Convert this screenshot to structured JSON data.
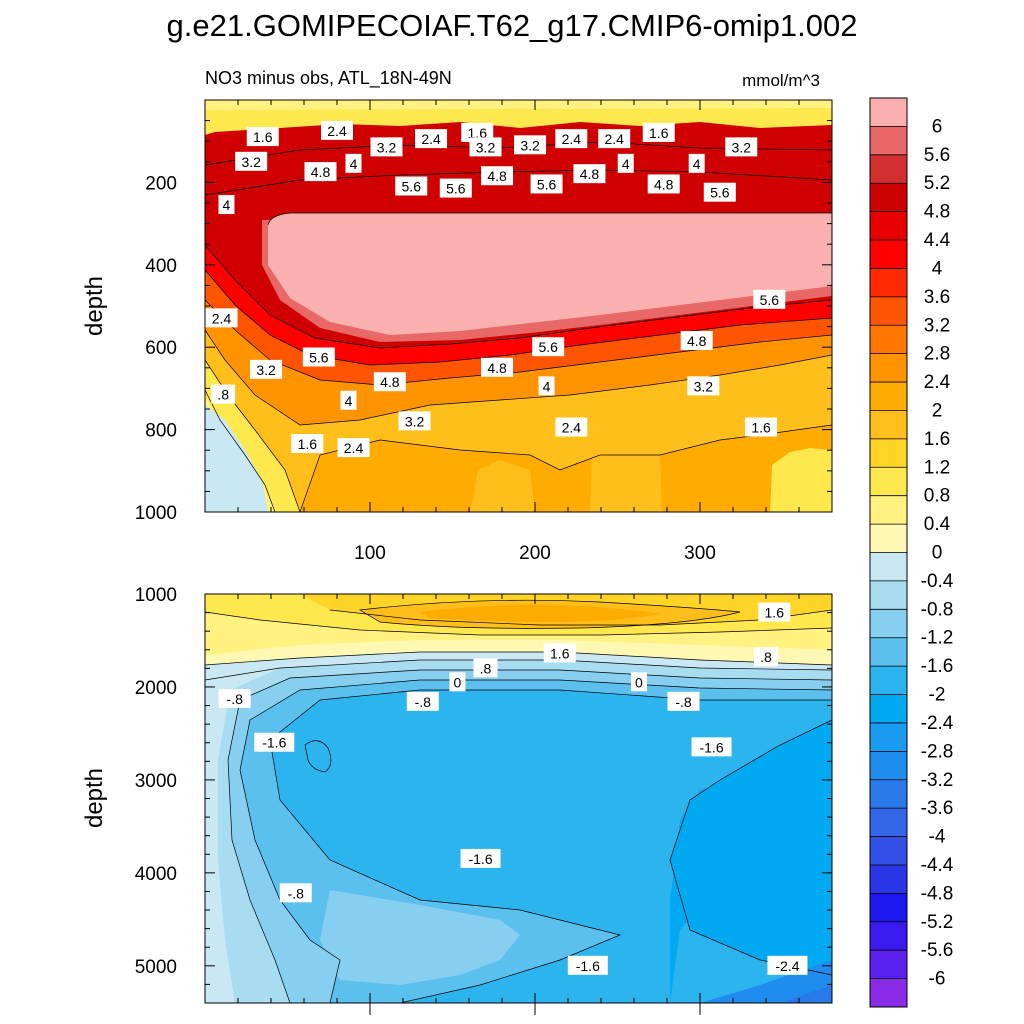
{
  "chart_data": {
    "type": "contour",
    "title": "g.e21.GOMIPECOIAF.T62_g17.CMIP6-omip1.002",
    "subtitle": "NO3 minus obs, ATL_18N-49N",
    "units": "mmol/m^3",
    "x_ticks": [
      100,
      200,
      300
    ],
    "x_range": [
      0,
      380
    ],
    "upper_panel": {
      "ylabel": "depth",
      "ylim": [
        0,
        1000
      ],
      "y_ticks": [
        200,
        400,
        600,
        800,
        1000
      ],
      "contour_labels": [
        {
          "text": "1.6",
          "x": 35,
          "y": 90
        },
        {
          "text": "2.4",
          "x": 80,
          "y": 75
        },
        {
          "text": "3.2",
          "x": 110,
          "y": 115
        },
        {
          "text": "2.4",
          "x": 137,
          "y": 95
        },
        {
          "text": "1.6",
          "x": 165,
          "y": 80
        },
        {
          "text": "3.2",
          "x": 170,
          "y": 115
        },
        {
          "text": "3.2",
          "x": 197,
          "y": 110
        },
        {
          "text": "2.4",
          "x": 222,
          "y": 95
        },
        {
          "text": "2.4",
          "x": 248,
          "y": 95
        },
        {
          "text": "1.6",
          "x": 275,
          "y": 80
        },
        {
          "text": "3.2",
          "x": 325,
          "y": 115
        },
        {
          "text": "3.2",
          "x": 28,
          "y": 150
        },
        {
          "text": "4.8",
          "x": 70,
          "y": 175
        },
        {
          "text": "4",
          "x": 90,
          "y": 155
        },
        {
          "text": "5.6",
          "x": 125,
          "y": 210
        },
        {
          "text": "5.6",
          "x": 152,
          "y": 215
        },
        {
          "text": "4.8",
          "x": 177,
          "y": 185
        },
        {
          "text": "5.6",
          "x": 207,
          "y": 205
        },
        {
          "text": "4.8",
          "x": 233,
          "y": 180
        },
        {
          "text": "4",
          "x": 255,
          "y": 155
        },
        {
          "text": "4",
          "x": 298,
          "y": 155
        },
        {
          "text": "4.8",
          "x": 278,
          "y": 205
        },
        {
          "text": "5.6",
          "x": 312,
          "y": 225
        },
        {
          "text": "4",
          "x": 13,
          "y": 255
        },
        {
          "text": "2.4",
          "x": 10,
          "y": 530
        },
        {
          "text": "5.6",
          "x": 342,
          "y": 485
        },
        {
          "text": "5.6",
          "x": 69,
          "y": 625
        },
        {
          "text": "5.6",
          "x": 208,
          "y": 600
        },
        {
          "text": "4.8",
          "x": 298,
          "y": 585
        },
        {
          "text": "3.2",
          "x": 37,
          "y": 655
        },
        {
          "text": "4.8",
          "x": 177,
          "y": 650
        },
        {
          "text": "4.8",
          "x": 112,
          "y": 685
        },
        {
          "text": "4",
          "x": 207,
          "y": 695
        },
        {
          "text": "3.2",
          "x": 302,
          "y": 695
        },
        {
          "text": ".8",
          "x": 11,
          "y": 715
        },
        {
          "text": "4",
          "x": 87,
          "y": 730
        },
        {
          "text": "3.2",
          "x": 127,
          "y": 780
        },
        {
          "text": "2.4",
          "x": 222,
          "y": 795
        },
        {
          "text": "1.6",
          "x": 337,
          "y": 795
        },
        {
          "text": "1.6",
          "x": 62,
          "y": 835
        },
        {
          "text": "2.4",
          "x": 90,
          "y": 845
        }
      ]
    },
    "lower_panel": {
      "ylabel": "depth",
      "ylim": [
        1000,
        5400
      ],
      "y_ticks": [
        1000,
        2000,
        3000,
        4000,
        5000
      ],
      "contour_labels": [
        {
          "text": "1.6",
          "x": 345,
          "y": 1200
        },
        {
          "text": "1.6",
          "x": 215,
          "y": 1640
        },
        {
          "text": ".8",
          "x": 340,
          "y": 1680
        },
        {
          "text": ".8",
          "x": 170,
          "y": 1800
        },
        {
          "text": "0",
          "x": 153,
          "y": 1950
        },
        {
          "text": "0",
          "x": 263,
          "y": 1950
        },
        {
          "text": "-.8",
          "x": 18,
          "y": 2130
        },
        {
          "text": "-.8",
          "x": 132,
          "y": 2160
        },
        {
          "text": "-.8",
          "x": 290,
          "y": 2160
        },
        {
          "text": "-1.6",
          "x": 42,
          "y": 2600
        },
        {
          "text": "-1.6",
          "x": 307,
          "y": 2650
        },
        {
          "text": "-1.6",
          "x": 167,
          "y": 3850
        },
        {
          "text": "-.8",
          "x": 55,
          "y": 4220
        },
        {
          "text": "-1.6",
          "x": 232,
          "y": 5000
        },
        {
          "text": "-2.4",
          "x": 353,
          "y": 5000
        }
      ]
    },
    "colorbar": {
      "levels": [
        "6",
        "5.6",
        "5.2",
        "4.8",
        "4.4",
        "4",
        "3.6",
        "3.2",
        "2.8",
        "2.4",
        "2",
        "1.6",
        "1.2",
        "0.8",
        "0.4",
        "0",
        "-0.4",
        "-0.8",
        "-1.2",
        "-1.6",
        "-2",
        "-2.4",
        "-2.8",
        "-3.2",
        "-3.6",
        "-4",
        "-4.4",
        "-4.8",
        "-5.2",
        "-5.6",
        "-6"
      ],
      "colors": [
        "#fbb0b0",
        "#e86868",
        "#d23030",
        "#cc0000",
        "#e60000",
        "#ff0000",
        "#ff2a00",
        "#ff5400",
        "#ff7700",
        "#ff9300",
        "#ffab00",
        "#ffbe19",
        "#ffd426",
        "#ffe84d",
        "#fff280",
        "#fff8b3",
        "#c9e8f4",
        "#a8dcf1",
        "#86cff0",
        "#5cc0ef",
        "#2cb4ef",
        "#00a9f2",
        "#1a9cf2",
        "#1f8cf0",
        "#2a79ea",
        "#3366e6",
        "#3350e6",
        "#2a36e8",
        "#1a1aee",
        "#3a1af0",
        "#5c20ee",
        "#8a2be8"
      ]
    }
  }
}
